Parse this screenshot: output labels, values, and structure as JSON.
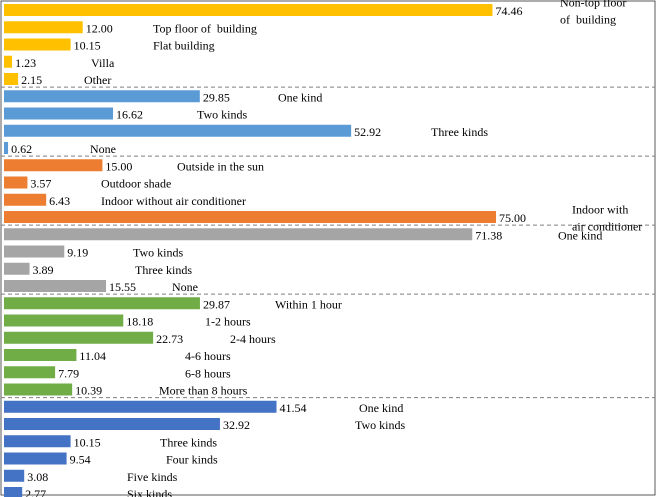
{
  "chart_data": {
    "type": "bar",
    "orientation": "horizontal",
    "xlim": [
      0,
      100
    ],
    "grid": false,
    "legend": "none",
    "groups": [
      {
        "color": "#FFC000",
        "bars": [
          {
            "value": 74.46,
            "value_label": "74.46",
            "category": "Non-top floor\nof  building"
          },
          {
            "value": 12.0,
            "value_label": "12.00",
            "category": "Top floor of  building"
          },
          {
            "value": 10.15,
            "value_label": "10.15",
            "category": "Flat building"
          },
          {
            "value": 1.23,
            "value_label": "1.23",
            "category": "Villa"
          },
          {
            "value": 2.15,
            "value_label": "2.15",
            "category": "Other"
          }
        ]
      },
      {
        "color": "#5B9BD5",
        "bars": [
          {
            "value": 29.85,
            "value_label": "29.85",
            "category": "One kind"
          },
          {
            "value": 16.62,
            "value_label": "16.62",
            "category": "Two kinds"
          },
          {
            "value": 52.92,
            "value_label": "52.92",
            "category": "Three kinds"
          },
          {
            "value": 0.62,
            "value_label": "0.62",
            "category": "None"
          }
        ]
      },
      {
        "color": "#ED7D31",
        "bars": [
          {
            "value": 15.0,
            "value_label": "15.00",
            "category": "Outside in the sun"
          },
          {
            "value": 3.57,
            "value_label": "3.57",
            "category": "Outdoor shade"
          },
          {
            "value": 6.43,
            "value_label": "6.43",
            "category": "Indoor without air conditioner"
          },
          {
            "value": 75.0,
            "value_label": "75.00",
            "category": "Indoor with\nair conditioner"
          }
        ]
      },
      {
        "color": "#A5A5A5",
        "bars": [
          {
            "value": 71.38,
            "value_label": "71.38",
            "category": "One kind"
          },
          {
            "value": 9.19,
            "value_label": "9.19",
            "category": "Two kinds"
          },
          {
            "value": 3.89,
            "value_label": "3.89",
            "category": "Three kinds"
          },
          {
            "value": 15.55,
            "value_label": "15.55",
            "category": "None"
          }
        ]
      },
      {
        "color": "#70AD47",
        "bars": [
          {
            "value": 29.87,
            "value_label": "29.87",
            "category": "Within 1 hour"
          },
          {
            "value": 18.18,
            "value_label": "18.18",
            "category": "1-2 hours"
          },
          {
            "value": 22.73,
            "value_label": "22.73",
            "category": "2-4 hours"
          },
          {
            "value": 11.04,
            "value_label": "11.04",
            "category": "4-6 hours"
          },
          {
            "value": 7.79,
            "value_label": "7.79",
            "category": "6-8 hours"
          },
          {
            "value": 10.39,
            "value_label": "10.39",
            "category": "More than 8 hours"
          }
        ]
      },
      {
        "color": "#4472C4",
        "bars": [
          {
            "value": 41.54,
            "value_label": "41.54",
            "category": "One kind"
          },
          {
            "value": 32.92,
            "value_label": "32.92",
            "category": "Two kinds"
          },
          {
            "value": 10.15,
            "value_label": "10.15",
            "category": "Three kinds"
          },
          {
            "value": 9.54,
            "value_label": "9.54",
            "category": "Four kinds"
          },
          {
            "value": 3.08,
            "value_label": "3.08",
            "category": "Five kinds"
          },
          {
            "value": 2.77,
            "value_label": "2.77",
            "category": "Six kinds"
          }
        ]
      }
    ]
  }
}
